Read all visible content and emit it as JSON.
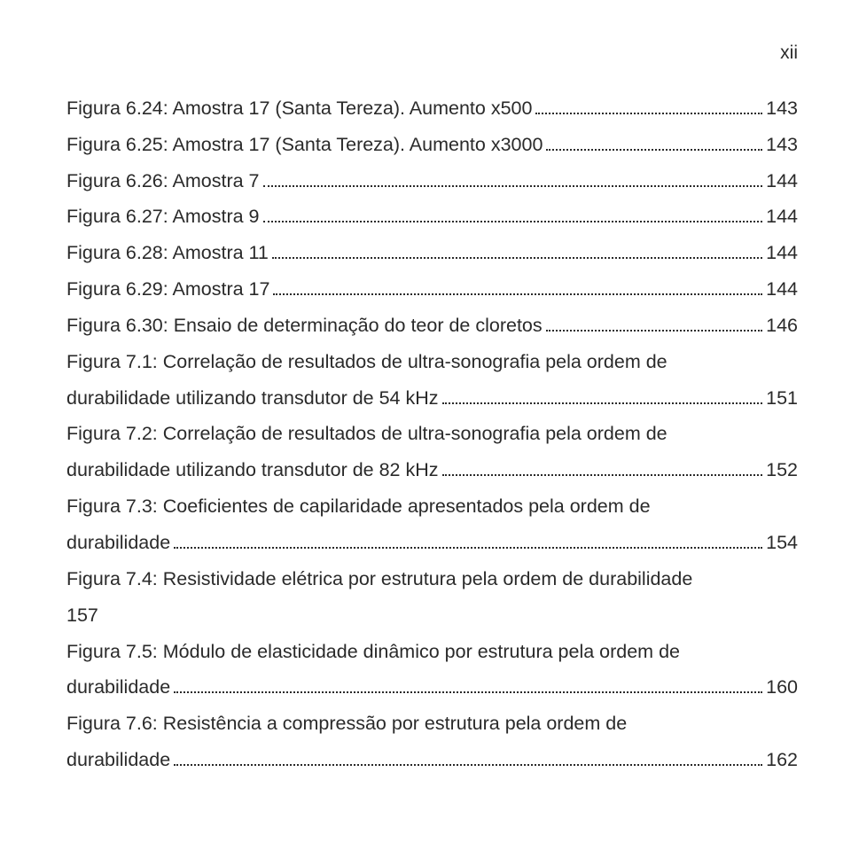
{
  "page_number_label": "xii",
  "text_color": "#2a2a2a",
  "background_color": "#ffffff",
  "font_family": "Arial",
  "font_size_pt": 16,
  "entries": [
    {
      "title": "Figura 6.24: Amostra 17 (Santa Tereza). Aumento x500",
      "page": "143",
      "wrap": false
    },
    {
      "title": "Figura 6.25: Amostra 17 (Santa Tereza). Aumento x3000",
      "page": "143",
      "wrap": false
    },
    {
      "title": "Figura 6.26: Amostra 7",
      "page": "144",
      "wrap": false
    },
    {
      "title": "Figura 6.27: Amostra 9",
      "page": "144",
      "wrap": false
    },
    {
      "title": "Figura 6.28: Amostra 11",
      "page": "144",
      "wrap": false
    },
    {
      "title": "Figura 6.29: Amostra 17",
      "page": "144",
      "wrap": false
    },
    {
      "title": "Figura 6.30: Ensaio de determinação do teor de cloretos",
      "page": "146",
      "wrap": false
    },
    {
      "title_line1": "Figura 7.1: Correlação de resultados de ultra-sonografia pela ordem de",
      "title_line2": "durabilidade utilizando transdutor de 54 kHz",
      "page": "151",
      "wrap": true
    },
    {
      "title_line1": "Figura 7.2: Correlação de resultados de ultra-sonografia pela ordem de",
      "title_line2": "durabilidade utilizando transdutor de 82 kHz",
      "page": "152",
      "wrap": true
    },
    {
      "title_line1": "Figura 7.3: Coeficientes de capilaridade apresentados pela ordem de",
      "title_line2": "durabilidade",
      "page": "154",
      "wrap": true
    },
    {
      "title_line1": "Figura 7.4: Resistividade elétrica por estrutura pela ordem de durabilidade",
      "title_line2": "157",
      "page": "",
      "wrap": true,
      "nolead": true
    },
    {
      "title_line1": "Figura 7.5: Módulo de elasticidade dinâmico por estrutura pela ordem de",
      "title_line2": "durabilidade",
      "page": "160",
      "wrap": true
    },
    {
      "title_line1": "Figura 7.6: Resistência a compressão por estrutura pela ordem de",
      "title_line2": "durabilidade",
      "page": "162",
      "wrap": true
    }
  ]
}
